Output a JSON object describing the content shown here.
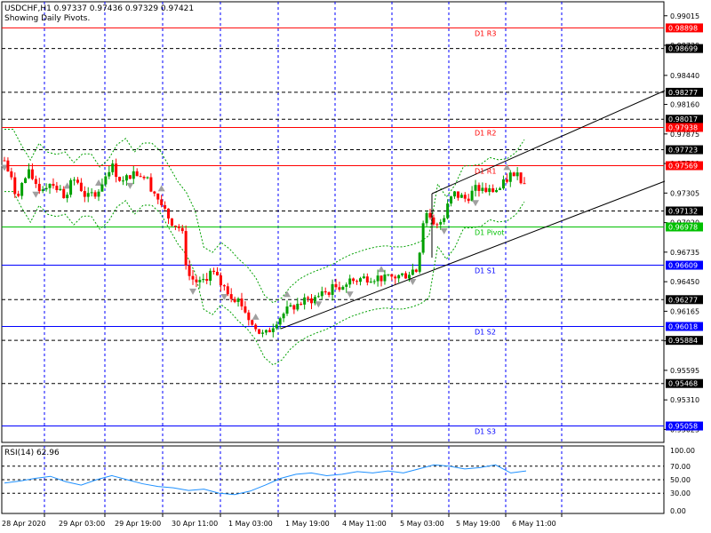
{
  "window": {
    "info_line": "USDCHF,H1  0.97337 0.97436 0.97329 0.97421",
    "pivot_note": "Showing Daily Pivots."
  },
  "colors": {
    "bull": "#00a000",
    "bear": "#ff0000",
    "resistance": "#ff0000",
    "support": "#0000ff",
    "pivot": "#00c000",
    "grid": "#0000ff",
    "envelope": "#00a000",
    "fractal": "#a0a0a0",
    "trend": "#000000",
    "rsi": "#1e90ff"
  },
  "price_axis": {
    "min": 0.949,
    "max": 0.9915,
    "ticks": [
      "0.99015",
      "0.98730",
      "0.98440",
      "0.98160",
      "0.97875",
      "0.97590",
      "0.97305",
      "0.97020",
      "0.96735",
      "0.96450",
      "0.96165",
      "0.95880",
      "0.95595",
      "0.95310",
      "0.95025"
    ]
  },
  "highlighted_prices": [
    {
      "label": "0.98898",
      "price": 0.98898,
      "color": "#ff0000"
    },
    {
      "label": "0.98699",
      "price": 0.98699,
      "color": "#000000"
    },
    {
      "label": "0.98277",
      "price": 0.98277,
      "color": "#000000"
    },
    {
      "label": "0.98017",
      "price": 0.98017,
      "color": "#000000"
    },
    {
      "label": "0.97938",
      "price": 0.97938,
      "color": "#ff0000"
    },
    {
      "label": "0.97723",
      "price": 0.97723,
      "color": "#000000"
    },
    {
      "label": "0.97569",
      "price": 0.97569,
      "color": "#ff0000"
    },
    {
      "label": "0.97132",
      "price": 0.97132,
      "color": "#000000"
    },
    {
      "label": "0.96978",
      "price": 0.96978,
      "color": "#00c000"
    },
    {
      "label": "0.96609",
      "price": 0.96609,
      "color": "#0000ff"
    },
    {
      "label": "0.96277",
      "price": 0.96277,
      "color": "#000000"
    },
    {
      "label": "0.96018",
      "price": 0.96018,
      "color": "#0000ff"
    },
    {
      "label": "0.95884",
      "price": 0.95884,
      "color": "#000000"
    },
    {
      "label": "0.95468",
      "price": 0.95468,
      "color": "#000000"
    },
    {
      "label": "0.95058",
      "price": 0.95058,
      "color": "#0000ff"
    }
  ],
  "pivot_levels": [
    {
      "label": "D1 R3",
      "price": 0.98898,
      "color": "#ff0000"
    },
    {
      "label": "D1 R2",
      "price": 0.97938,
      "color": "#ff0000"
    },
    {
      "label": "D1 R1",
      "price": 0.97569,
      "color": "#ff0000"
    },
    {
      "label": "D1 Pivot",
      "price": 0.96978,
      "color": "#00c000"
    },
    {
      "label": "D1 S1",
      "price": 0.96609,
      "color": "#0000ff"
    },
    {
      "label": "D1 S2",
      "price": 0.96018,
      "color": "#0000ff"
    },
    {
      "label": "D1 S3",
      "price": 0.95058,
      "color": "#0000ff"
    }
  ],
  "dashed_levels": [
    0.98699,
    0.98277,
    0.98017,
    0.97723,
    0.97132,
    0.96277,
    0.95884,
    0.95468
  ],
  "time_labels": [
    "28 Apr 2020",
    "29 Apr 03:00",
    "29 Apr 19:00",
    "30 Apr 11:00",
    "1 May 03:00",
    "1 May 19:00",
    "4 May 11:00",
    "5 May 03:00",
    "5 May 19:00",
    "6 May 11:00"
  ],
  "price_path": [
    [
      0,
      0.9762
    ],
    [
      0.02,
      0.9728
    ],
    [
      0.04,
      0.975
    ],
    [
      0.06,
      0.9735
    ],
    [
      0.08,
      0.9742
    ],
    [
      0.1,
      0.9728
    ],
    [
      0.12,
      0.9745
    ],
    [
      0.14,
      0.9725
    ],
    [
      0.16,
      0.9735
    ],
    [
      0.18,
      0.9758
    ],
    [
      0.2,
      0.974
    ],
    [
      0.22,
      0.9752
    ],
    [
      0.24,
      0.9745
    ],
    [
      0.26,
      0.9725
    ],
    [
      0.28,
      0.9705
    ],
    [
      0.3,
      0.9695
    ],
    [
      0.31,
      0.9652
    ],
    [
      0.33,
      0.9642
    ],
    [
      0.35,
      0.9655
    ],
    [
      0.37,
      0.964
    ],
    [
      0.4,
      0.9625
    ],
    [
      0.42,
      0.9602
    ],
    [
      0.44,
      0.9592
    ],
    [
      0.46,
      0.9608
    ],
    [
      0.48,
      0.9618
    ],
    [
      0.5,
      0.9624
    ],
    [
      0.53,
      0.963
    ],
    [
      0.56,
      0.964
    ],
    [
      0.59,
      0.9646
    ],
    [
      0.62,
      0.965
    ],
    [
      0.65,
      0.9648
    ],
    [
      0.68,
      0.9652
    ],
    [
      0.7,
      0.966
    ],
    [
      0.71,
      0.9712
    ],
    [
      0.73,
      0.9695
    ],
    [
      0.74,
      0.9705
    ],
    [
      0.76,
      0.973
    ],
    [
      0.78,
      0.9725
    ],
    [
      0.8,
      0.9735
    ],
    [
      0.82,
      0.9732
    ],
    [
      0.84,
      0.9735
    ],
    [
      0.86,
      0.9752
    ],
    [
      0.88,
      0.9742
    ]
  ],
  "rsi": {
    "label": "RSI(14) 62.96",
    "ticks": [
      "100.00",
      "70.00",
      "50.00",
      "30.00",
      "0.00"
    ],
    "values": [
      45,
      48,
      52,
      55,
      47,
      42,
      50,
      56,
      50,
      44,
      40,
      38,
      34,
      36,
      30,
      28,
      33,
      42,
      52,
      58,
      60,
      56,
      58,
      62,
      60,
      63,
      60,
      66,
      72,
      70,
      66,
      68,
      72,
      60,
      63
    ]
  }
}
